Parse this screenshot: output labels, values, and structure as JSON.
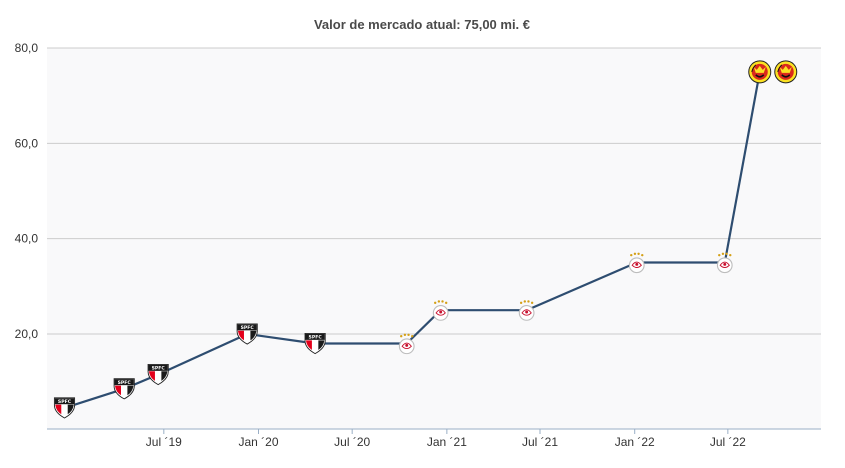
{
  "chart_data": {
    "type": "line",
    "title": "Valor de mercado atual: 75,00 mi. €",
    "xlabel": "",
    "ylabel": "",
    "ylim": [
      0,
      80
    ],
    "grid": true,
    "yticks": [
      {
        "value": 20,
        "label": "20,0"
      },
      {
        "value": 40,
        "label": "40,0"
      },
      {
        "value": 60,
        "label": "60,0"
      },
      {
        "value": 80,
        "label": "80,0"
      }
    ],
    "xticks": [
      {
        "date": "2019-07-01",
        "label": "Jul ´19"
      },
      {
        "date": "2020-01-01",
        "label": "Jan ´20"
      },
      {
        "date": "2020-07-01",
        "label": "Jul ´20"
      },
      {
        "date": "2021-01-01",
        "label": "Jan ´21"
      },
      {
        "date": "2021-07-01",
        "label": "Jul ´21"
      },
      {
        "date": "2022-01-01",
        "label": "Jan ´22"
      },
      {
        "date": "2022-07-01",
        "label": "Jul ´22"
      }
    ],
    "xlim": [
      "2018-11-16",
      "2022-12-29"
    ],
    "series": [
      {
        "color": "#2e4d70",
        "points": [
          {
            "date": "2018-12-20",
            "value": 4.5,
            "club": "spfc"
          },
          {
            "date": "2019-04-15",
            "value": 8.5,
            "club": "spfc"
          },
          {
            "date": "2019-06-20",
            "value": 11.5,
            "club": "spfc"
          },
          {
            "date": "2019-12-10",
            "value": 20.0,
            "club": "spfc"
          },
          {
            "date": "2020-04-20",
            "value": 18.0,
            "club": "spfc"
          },
          {
            "date": "2020-10-15",
            "value": 18.0,
            "club": "ajax"
          },
          {
            "date": "2020-12-20",
            "value": 25.0,
            "club": "ajax"
          },
          {
            "date": "2021-06-05",
            "value": 25.0,
            "club": "ajax"
          },
          {
            "date": "2022-01-05",
            "value": 35.0,
            "club": "ajax"
          },
          {
            "date": "2022-06-25",
            "value": 35.0,
            "club": "ajax"
          },
          {
            "date": "2022-09-01",
            "value": 75.0,
            "club": "manutd"
          }
        ]
      }
    ]
  },
  "colors": {
    "plot_bg": "#f9f9fa",
    "grid": "#cccccc",
    "axis": "#9aafc6",
    "line": "#2e4d70",
    "spfc_red": "#e3001b",
    "manutd_red": "#da291c",
    "manutd_gold": "#fbe122"
  },
  "icons": [
    "spfc-crest-icon",
    "ajax-crest-icon",
    "manutd-crest-icon"
  ]
}
